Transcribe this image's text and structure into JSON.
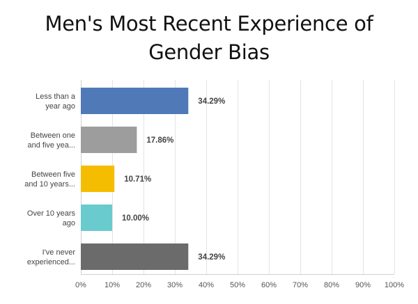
{
  "chart_data": {
    "type": "bar",
    "orientation": "horizontal",
    "title": "Men's Most Recent Experience of Gender Bias",
    "title_lines": [
      "Men's Most Recent Experience of",
      "Gender Bias"
    ],
    "categories": [
      [
        "Less than a",
        "year ago"
      ],
      [
        "Between one",
        "and five yea..."
      ],
      [
        "Between five",
        "and 10 years..."
      ],
      [
        "Over 10 years",
        "ago"
      ],
      [
        "I've never",
        "experienced..."
      ]
    ],
    "values": [
      34.29,
      17.86,
      10.71,
      10.0,
      34.29
    ],
    "value_labels": [
      "34.29%",
      "17.86%",
      "10.71%",
      "10.00%",
      "34.29%"
    ],
    "colors": [
      "#5079b8",
      "#9d9d9d",
      "#f5bd02",
      "#69cbcd",
      "#6b6b6b"
    ],
    "xlim": [
      0,
      100
    ],
    "x_ticks": [
      0,
      10,
      20,
      30,
      40,
      50,
      60,
      70,
      80,
      90,
      100
    ],
    "x_tick_labels": [
      "0%",
      "10%",
      "20%",
      "30%",
      "40%",
      "50%",
      "60%",
      "70%",
      "80%",
      "90%",
      "100%"
    ],
    "xlabel": "",
    "ylabel": "",
    "grid": true,
    "legend": "none"
  }
}
